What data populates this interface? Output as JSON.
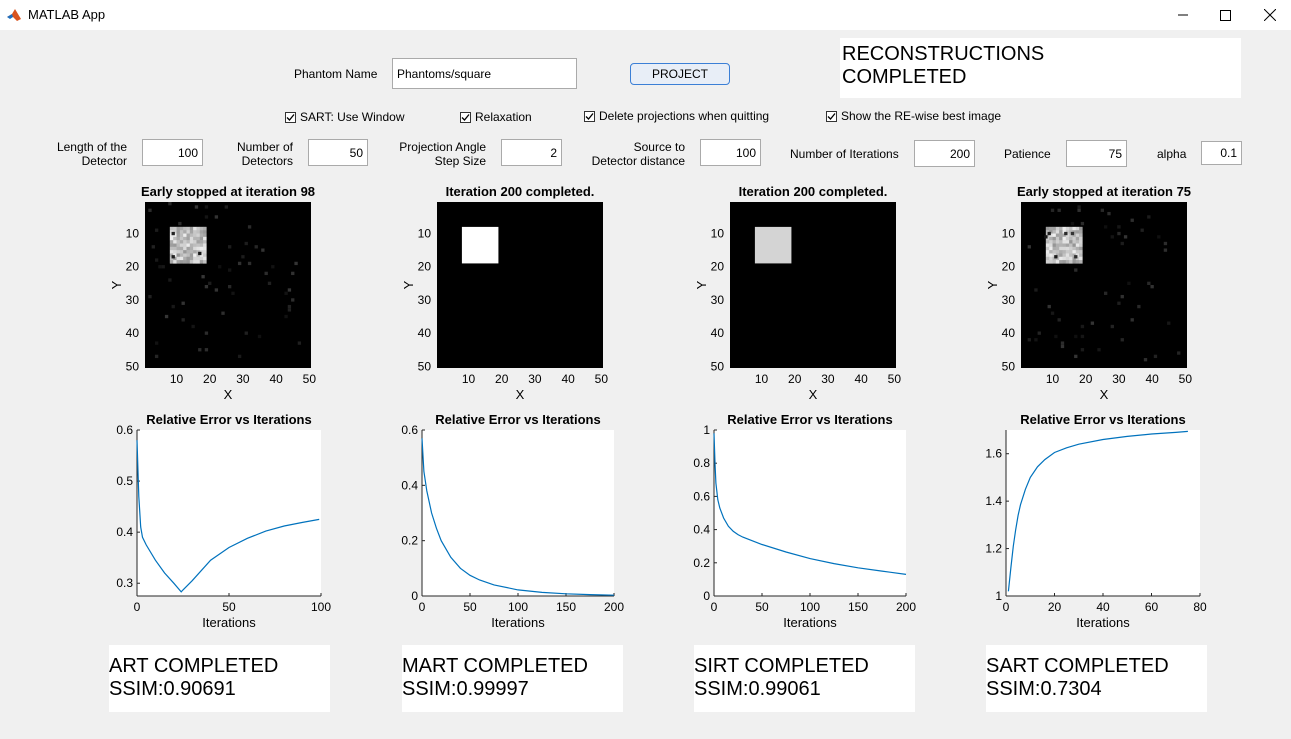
{
  "window": {
    "title": "MATLAB App",
    "minimize": "—",
    "maximize": "☐",
    "close": "✕",
    "icon": "matlab-logo-icon"
  },
  "controls": {
    "phantom_label": "Phantom Name",
    "phantom_value": "Phantoms/square",
    "project_label": "PROJECT",
    "status_line1": "RECONSTRUCTIONS",
    "status_line2": "COMPLETED",
    "checkboxes": [
      {
        "label": "SART: Use Window",
        "checked": true
      },
      {
        "label": "Relaxation",
        "checked": true
      },
      {
        "label": "Delete projections when quitting",
        "checked": true
      },
      {
        "label": "Show the RE-wise best image",
        "checked": true
      }
    ],
    "params": [
      {
        "label1": "Length of the",
        "label2": "Detector",
        "value": "100"
      },
      {
        "label1": "Number of",
        "label2": "Detectors",
        "value": "50"
      },
      {
        "label1": "Projection Angle",
        "label2": "Step Size",
        "value": "2"
      },
      {
        "label1": "Source to",
        "label2": "Detector distance",
        "value": "100"
      },
      {
        "label1": "Number of Iterations",
        "label2": "",
        "value": "200"
      },
      {
        "label1": "Patience",
        "label2": "",
        "value": "75"
      },
      {
        "label1": "alpha",
        "label2": "",
        "value": "0.1"
      }
    ]
  },
  "images": [
    {
      "title": "Early stopped at iteration 98",
      "square_fill": "#c6c6c6",
      "noise": true
    },
    {
      "title": "Iteration 200 completed.",
      "square_fill": "#ffffff",
      "noise": false
    },
    {
      "title": "Iteration 200 completed.",
      "square_fill": "#d4d4d4",
      "noise": false
    },
    {
      "title": "Early stopped at iteration 75",
      "square_fill": "#b4b4b4",
      "noise": true
    }
  ],
  "image_axes": {
    "xlabel": "X",
    "ylabel": "Y",
    "xticks": [
      "10",
      "20",
      "30",
      "40",
      "50"
    ],
    "yticks": [
      "10",
      "20",
      "30",
      "40",
      "50"
    ]
  },
  "chart_data": [
    {
      "type": "line",
      "title": "Relative Error vs Iterations",
      "xlabel": "Iterations",
      "ylabel": "",
      "xlim": [
        0,
        100
      ],
      "ylim": [
        0.275,
        0.6
      ],
      "xticks": [
        "0",
        "50",
        "100"
      ],
      "yticks": [
        "0.3",
        "0.4",
        "0.5",
        "0.6"
      ],
      "series": [
        {
          "x": [
            0,
            1,
            2,
            3,
            5,
            10,
            15,
            20,
            24,
            25,
            30,
            40,
            50,
            60,
            70,
            80,
            90,
            99
          ],
          "y": [
            0.58,
            0.47,
            0.41,
            0.39,
            0.375,
            0.345,
            0.32,
            0.3,
            0.283,
            0.287,
            0.305,
            0.345,
            0.37,
            0.388,
            0.402,
            0.412,
            0.419,
            0.425
          ]
        }
      ],
      "color": "#0072bd"
    },
    {
      "type": "line",
      "title": "Relative Error vs Iterations",
      "xlabel": "Iterations",
      "ylabel": "",
      "xlim": [
        0,
        200
      ],
      "ylim": [
        0,
        0.6
      ],
      "xticks": [
        "0",
        "50",
        "100",
        "150",
        "200"
      ],
      "yticks": [
        "0",
        "0.2",
        "0.4",
        "0.6"
      ],
      "series": [
        {
          "x": [
            0,
            2,
            5,
            10,
            15,
            20,
            30,
            40,
            50,
            60,
            75,
            100,
            125,
            150,
            175,
            200
          ],
          "y": [
            0.57,
            0.45,
            0.38,
            0.3,
            0.245,
            0.2,
            0.14,
            0.1,
            0.075,
            0.058,
            0.04,
            0.022,
            0.013,
            0.008,
            0.005,
            0.003
          ]
        }
      ],
      "color": "#0072bd"
    },
    {
      "type": "line",
      "title": "Relative Error vs Iterations",
      "xlabel": "Iterations",
      "ylabel": "",
      "xlim": [
        0,
        200
      ],
      "ylim": [
        0,
        1
      ],
      "xticks": [
        "0",
        "50",
        "100",
        "150",
        "200"
      ],
      "yticks": [
        "0",
        "0.2",
        "0.4",
        "0.6",
        "0.8",
        "1"
      ],
      "series": [
        {
          "x": [
            0,
            1,
            2,
            4,
            6,
            10,
            15,
            20,
            25,
            30,
            50,
            75,
            100,
            125,
            150,
            175,
            200
          ],
          "y": [
            0.98,
            0.8,
            0.68,
            0.58,
            0.53,
            0.47,
            0.42,
            0.39,
            0.37,
            0.355,
            0.31,
            0.265,
            0.225,
            0.195,
            0.17,
            0.15,
            0.13
          ]
        }
      ],
      "color": "#0072bd"
    },
    {
      "type": "line",
      "title": "Relative Error vs Iterations",
      "xlabel": "Iterations",
      "ylabel": "",
      "xlim": [
        0,
        80
      ],
      "ylim": [
        1,
        1.7
      ],
      "xticks": [
        "0",
        "20",
        "40",
        "60",
        "80"
      ],
      "yticks": [
        "1",
        "1.2",
        "1.4",
        "1.6"
      ],
      "series": [
        {
          "x": [
            1,
            2,
            3,
            4,
            5,
            6,
            8,
            10,
            13,
            16,
            20,
            25,
            30,
            40,
            50,
            60,
            70,
            75
          ],
          "y": [
            1.02,
            1.12,
            1.21,
            1.28,
            1.34,
            1.385,
            1.45,
            1.5,
            1.545,
            1.575,
            1.605,
            1.625,
            1.64,
            1.66,
            1.673,
            1.683,
            1.69,
            1.694
          ]
        }
      ],
      "color": "#0072bd"
    }
  ],
  "results": [
    {
      "line1": "ART COMPLETED",
      "line2": "SSIM:0.90691"
    },
    {
      "line1": "MART COMPLETED",
      "line2": "SSIM:0.99997"
    },
    {
      "line1": "SIRT COMPLETED",
      "line2": "SSIM:0.99061"
    },
    {
      "line1": "SART COMPLETED",
      "line2": "SSIM:0.7304"
    }
  ]
}
